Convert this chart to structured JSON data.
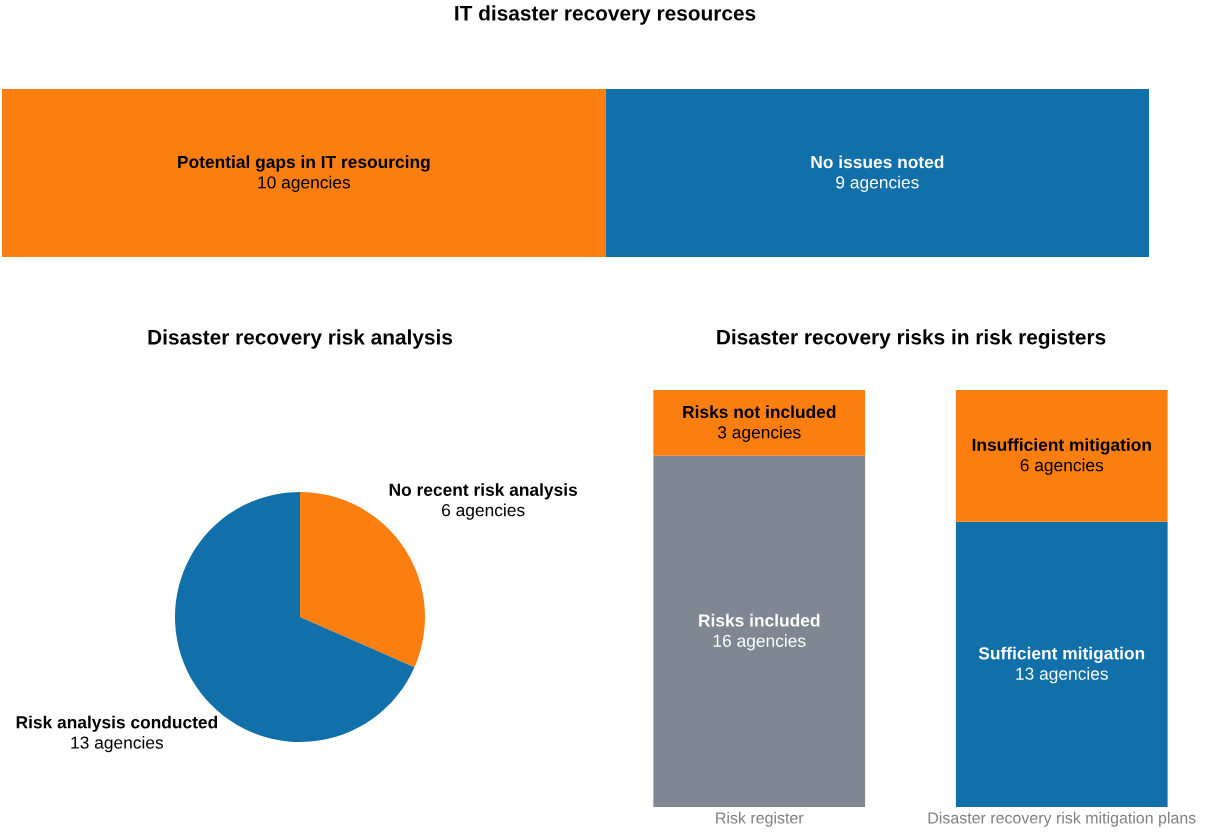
{
  "chart_data": [
    {
      "type": "bar",
      "title": "IT disaster recovery resources",
      "orientation": "horizontal",
      "stacked": true,
      "tick_labels": false,
      "categories": [
        null
      ],
      "series": [
        {
          "name": "Potential gaps in IT resourcing",
          "color": "#fa7f10",
          "values": [
            10
          ],
          "value_labels": [
            "10 agencies"
          ]
        },
        {
          "name": "No issues noted",
          "color": "#1170aa",
          "values": [
            9
          ],
          "value_labels": [
            "9 agencies"
          ]
        }
      ]
    },
    {
      "type": "pie",
      "title": "Disaster recovery risk analysis",
      "categories": [
        "No recent risk analysis",
        "Risk analysis conducted"
      ],
      "values": [
        6,
        13
      ],
      "colors": [
        "#fa7f10",
        "#1170aa"
      ],
      "value_labels": [
        "6 agencies",
        "13 agencies"
      ]
    },
    {
      "type": "bar",
      "title": "Disaster recovery risks in risk registers",
      "stacked": true,
      "tick_labels": "x",
      "categories": [
        "Risk register",
        "Disaster recovery risk mitigation plans"
      ],
      "series": [
        {
          "name": "Risks included",
          "color": "#7f8792",
          "values": [
            16,
            null
          ],
          "value_labels": [
            "16 agencies",
            null
          ]
        },
        {
          "name": "Sufficient mitigation",
          "color": "#1170aa",
          "values": [
            null,
            13
          ],
          "value_labels": [
            null,
            "13 agencies"
          ]
        },
        {
          "name": "Risks not included",
          "color": "#fa7f10",
          "values": [
            3,
            null
          ],
          "value_labels": [
            "3 agencies",
            null
          ]
        },
        {
          "name": "Insufficient mitigation",
          "color": "#fa7f10",
          "values": [
            null,
            6
          ],
          "value_labels": [
            null,
            "6 agencies"
          ]
        }
      ]
    }
  ]
}
